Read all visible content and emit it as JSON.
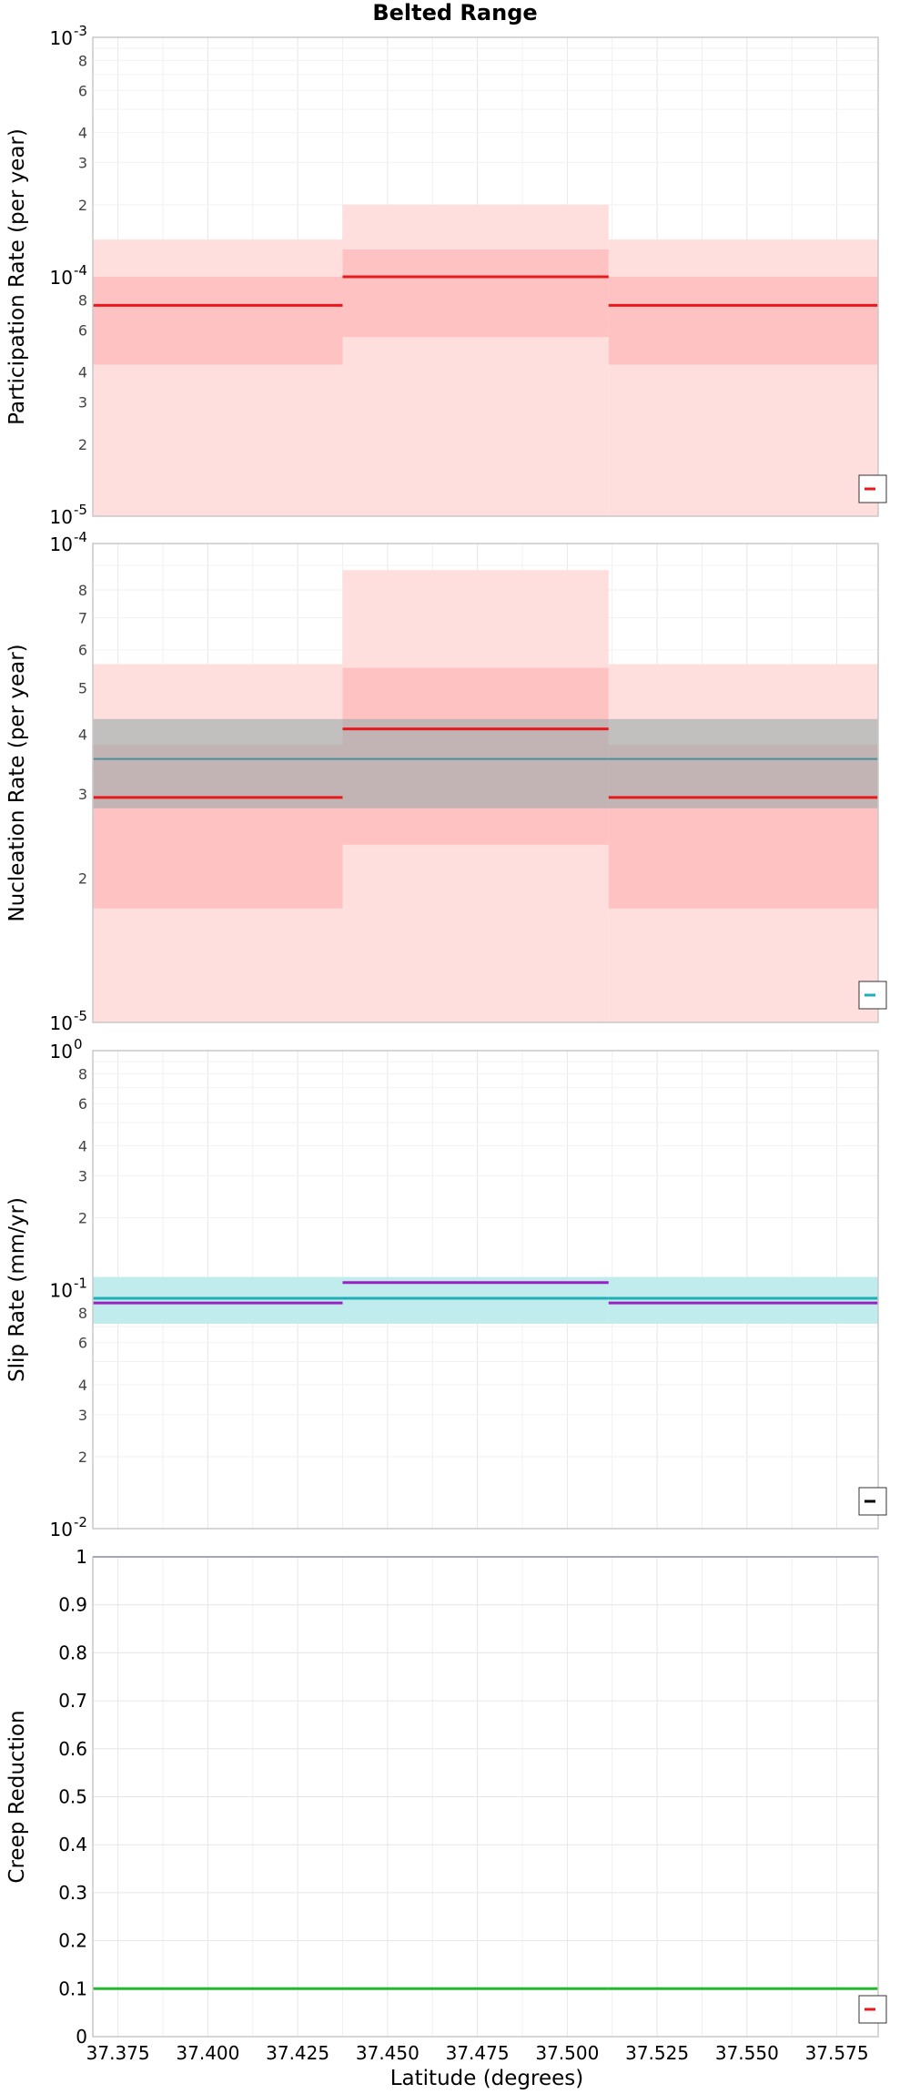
{
  "chart_data": {
    "title": "Belted Range",
    "xlabel": "Latitude (degrees)",
    "xlim": [
      37.368,
      37.5865
    ],
    "xticks": [
      "37.375",
      "37.400",
      "37.425",
      "37.450",
      "37.475",
      "37.500",
      "37.525",
      "37.550",
      "37.575"
    ],
    "segments_x": [
      37.368,
      37.4375,
      37.5115,
      37.5865
    ],
    "colors": {
      "band_light": "#ffdede",
      "band_mid": "#ffbdbd",
      "red": "#e8191d",
      "gray_band": "#9aaaaa",
      "teal": "#1fb0b6",
      "teal_band": "#c1ecee",
      "purple": "#9a1fc4",
      "navy": "#3a3fa0",
      "green": "#22b82d",
      "grid": "#e6e6e6",
      "axis": "#c8c8c8"
    },
    "panels": [
      {
        "type": "line",
        "ylabel": "Participation Rate (per year)",
        "yscale": "log",
        "ylim": [
          1e-05,
          0.001
        ],
        "major_ticks": [
          {
            "base": "10",
            "exp": "-5"
          },
          {
            "base": "10",
            "exp": "-4"
          },
          {
            "base": "10",
            "exp": "-3"
          }
        ],
        "minor_labels": [
          "2",
          "3",
          "4",
          "6",
          "8",
          "2",
          "3",
          "4",
          "6",
          "8"
        ],
        "bands": [
          {
            "style": "light",
            "values": [
              [
                1e-05,
                0.000143
              ],
              [
                1e-05,
                0.0002
              ],
              [
                1e-05,
                0.000143
              ]
            ]
          },
          {
            "style": "mid",
            "values": [
              [
                4.3e-05,
                0.0001
              ],
              [
                5.6e-05,
                0.00013
              ],
              [
                4.3e-05,
                0.0001
              ]
            ]
          }
        ],
        "lines": [
          {
            "color": "red",
            "width": 3,
            "values": [
              7.6e-05,
              0.0001,
              7.6e-05
            ]
          }
        ]
      },
      {
        "type": "line",
        "ylabel": "Nucleation Rate (per year)",
        "yscale": "log",
        "ylim": [
          1e-05,
          0.0001
        ],
        "major_ticks": [
          {
            "base": "10",
            "exp": "-5"
          },
          {
            "base": "10",
            "exp": "-4"
          }
        ],
        "minor_labels": [
          "2",
          "3",
          "4",
          "5",
          "6",
          "7",
          "8"
        ],
        "bands": [
          {
            "style": "light",
            "values": [
              [
                1e-05,
                5.6e-05
              ],
              [
                1e-05,
                8.8e-05
              ],
              [
                1e-05,
                5.6e-05
              ]
            ]
          },
          {
            "style": "mid",
            "values": [
              [
                1.73e-05,
                3.8e-05
              ],
              [
                2.35e-05,
                5.5e-05
              ],
              [
                1.73e-05,
                3.8e-05
              ]
            ]
          },
          {
            "style": "gray",
            "values": [
              [
                2.8e-05,
                4.3e-05
              ],
              [
                2.8e-05,
                4.3e-05
              ],
              [
                2.8e-05,
                4.3e-05
              ]
            ]
          }
        ],
        "lines": [
          {
            "color": "teal_dark",
            "width": 2,
            "values": [
              3.55e-05,
              3.55e-05,
              3.55e-05
            ]
          },
          {
            "color": "red",
            "width": 3,
            "values": [
              2.95e-05,
              4.1e-05,
              2.95e-05
            ]
          }
        ]
      },
      {
        "type": "line",
        "ylabel": "Slip Rate (mm/yr)",
        "yscale": "log",
        "ylim": [
          0.01,
          1
        ],
        "major_ticks": [
          {
            "base": "10",
            "exp": "-2"
          },
          {
            "base": "10",
            "exp": "-1"
          },
          {
            "base": "10",
            "exp": "0"
          }
        ],
        "minor_labels": [
          "2",
          "3",
          "4",
          "6",
          "8",
          "2",
          "3",
          "4",
          "6",
          "8"
        ],
        "bands": [
          {
            "style": "teal",
            "values": [
              [
                0.072,
                0.113
              ],
              [
                0.072,
                0.113
              ],
              [
                0.072,
                0.113
              ]
            ]
          }
        ],
        "lines": [
          {
            "color": "teal",
            "width": 3,
            "values": [
              0.092,
              0.092,
              0.092
            ]
          },
          {
            "color": "purple",
            "width": 3,
            "values": [
              0.088,
              0.107,
              0.088
            ]
          }
        ]
      },
      {
        "type": "line",
        "ylabel": "Creep Reduction",
        "yscale": "linear",
        "ylim": [
          0,
          1
        ],
        "yticks": [
          "0",
          "0.1",
          "0.2",
          "0.3",
          "0.4",
          "0.5",
          "0.6",
          "0.7",
          "0.8",
          "0.9",
          "1"
        ],
        "bands": [],
        "lines": [
          {
            "color": "navy",
            "width": 2,
            "values": [
              1.0,
              1.0,
              1.0
            ]
          },
          {
            "color": "green",
            "width": 3,
            "values": [
              0.1,
              0.1,
              0.1
            ]
          }
        ]
      }
    ],
    "legend_placement": "bottom-right"
  }
}
